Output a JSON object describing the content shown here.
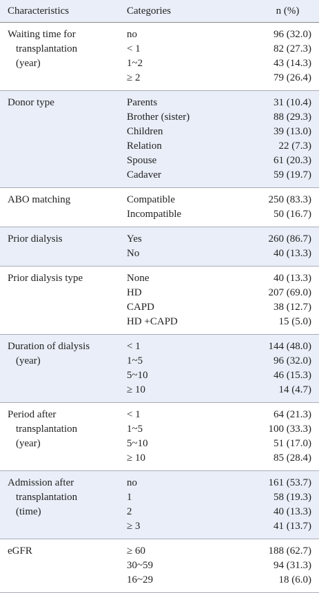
{
  "header": [
    "Characteristics",
    "Categories",
    "n (%)"
  ],
  "groups": [
    {
      "characteristic": [
        "Waiting time for",
        "transplantation",
        "(year)"
      ],
      "rows": [
        [
          "no",
          "96 (32.0)"
        ],
        [
          "< 1",
          "82 (27.3)"
        ],
        [
          "1~2",
          "43 (14.3)"
        ],
        [
          "≥ 2",
          "79 (26.4)"
        ]
      ]
    },
    {
      "characteristic": [
        "Donor type"
      ],
      "rows": [
        [
          "Parents",
          "31 (10.4)"
        ],
        [
          "Brother (sister)",
          "88 (29.3)"
        ],
        [
          "Children",
          "39 (13.0)"
        ],
        [
          "Relation",
          "22 (7.3)"
        ],
        [
          "Spouse",
          "61 (20.3)"
        ],
        [
          "Cadaver",
          "59 (19.7)"
        ]
      ]
    },
    {
      "characteristic": [
        "ABO matching"
      ],
      "rows": [
        [
          "Compatible",
          "250 (83.3)"
        ],
        [
          "Incompatible",
          "50 (16.7)"
        ]
      ]
    },
    {
      "characteristic": [
        "Prior dialysis"
      ],
      "rows": [
        [
          "Yes",
          "260 (86.7)"
        ],
        [
          "No",
          "40 (13.3)"
        ]
      ]
    },
    {
      "characteristic": [
        "Prior dialysis type"
      ],
      "rows": [
        [
          "None",
          "40 (13.3)"
        ],
        [
          "HD",
          "207 (69.0)"
        ],
        [
          "CAPD",
          "38 (12.7)"
        ],
        [
          "HD +CAPD",
          "15 (5.0)"
        ]
      ]
    },
    {
      "characteristic": [
        "Duration of dialysis",
        "(year)"
      ],
      "rows": [
        [
          "< 1",
          "144 (48.0)"
        ],
        [
          "1~5",
          "96 (32.0)"
        ],
        [
          "5~10",
          "46 (15.3)"
        ],
        [
          "≥ 10",
          "14 (4.7)"
        ]
      ]
    },
    {
      "characteristic": [
        "Period after",
        "transplantation",
        "(year)"
      ],
      "rows": [
        [
          "< 1",
          "64 (21.3)"
        ],
        [
          "1~5",
          "100 (33.3)"
        ],
        [
          "5~10",
          "51 (17.0)"
        ],
        [
          "≥ 10",
          "85 (28.4)"
        ]
      ]
    },
    {
      "characteristic": [
        "Admission after",
        "transplantation",
        "(time)"
      ],
      "rows": [
        [
          "no",
          "161 (53.7)"
        ],
        [
          "1",
          "58 (19.3)"
        ],
        [
          "2",
          "40 (13.3)"
        ],
        [
          "≥ 3",
          "41 (13.7)"
        ]
      ]
    },
    {
      "characteristic": [
        "eGFR"
      ],
      "rows": [
        [
          "≥ 60",
          "188 (62.7)"
        ],
        [
          "30~59",
          "94 (31.3)"
        ],
        [
          "16~29",
          "18 (6.0)"
        ]
      ]
    }
  ]
}
